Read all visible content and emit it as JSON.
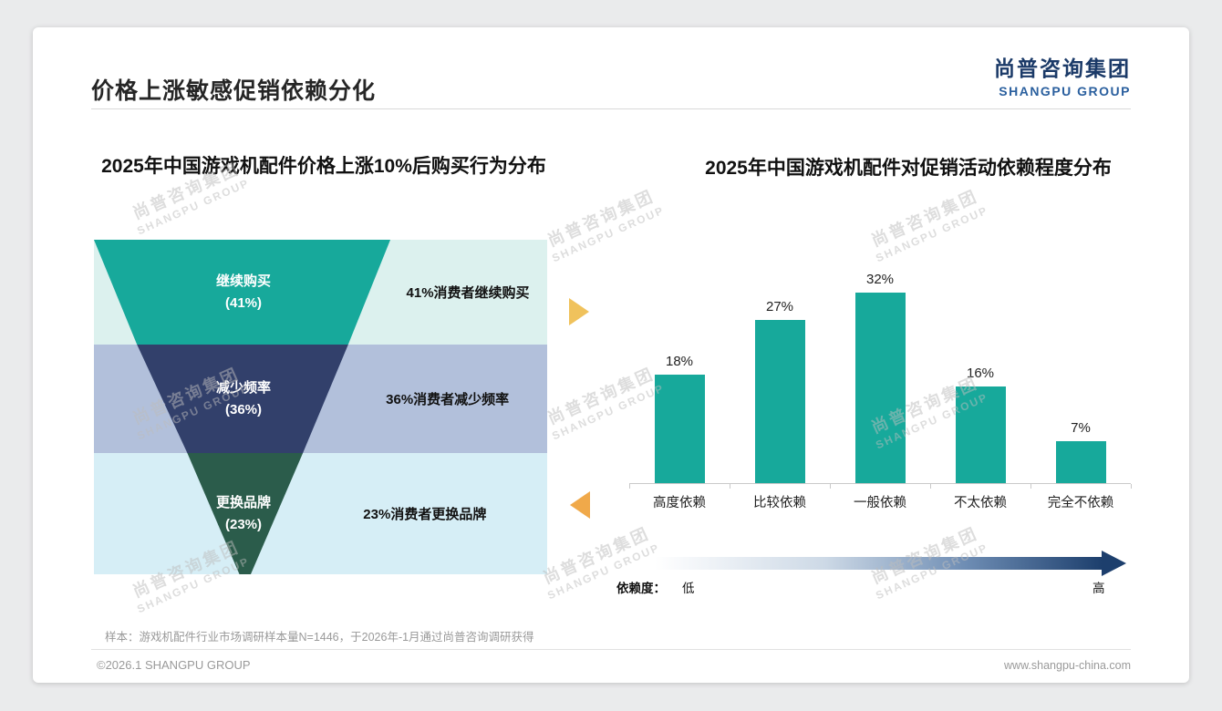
{
  "page": {
    "title": "价格上涨敏感促销依赖分化",
    "logo_cn": "尚普咨询集团",
    "logo_en": "SHANGPU GROUP",
    "watermark_cn": "尚普咨询集团",
    "watermark_en": "SHANGPU GROUP",
    "sample_note": "样本：游戏机配件行业市场调研样本量N=1446，于2026年-1月通过尚普咨询调研获得",
    "footer_left": "©2026.1 SHANGPU GROUP",
    "footer_right": "www.shangpu-china.com"
  },
  "decor": {
    "brand_navy": "#1b3a68",
    "brand_blue": "#2a5f9e",
    "teal": "#17a99b",
    "funnel_arrow_right": "#f0c25c",
    "funnel_arrow_left": "#f0a94a",
    "gradient_start": "#ffffff",
    "gradient_end": "#1d3f6d"
  },
  "chart_data": [
    {
      "type": "funnel",
      "title": "2025年中国游戏机配件价格上涨10%后购买行为分布",
      "unit": "%",
      "segments": [
        {
          "label": "继续购买",
          "value": 41,
          "desc": "41%消费者继续购买",
          "color": "#17a99b",
          "bg": "#dcf1ee"
        },
        {
          "label": "减少频率",
          "value": 36,
          "desc": "36%消费者减少频率",
          "color": "#32406b",
          "bg": "#b2c0db"
        },
        {
          "label": "更换品牌",
          "value": 23,
          "desc": "23%消费者更换品牌",
          "color": "#2b5c4b",
          "bg": "#d6eef6"
        }
      ]
    },
    {
      "type": "bar",
      "title": "2025年中国游戏机配件对促销活动依赖程度分布",
      "categories": [
        "高度依赖",
        "比较依赖",
        "一般依赖",
        "不太依赖",
        "完全不依赖"
      ],
      "values": [
        18,
        27,
        32,
        16,
        7
      ],
      "unit": "%",
      "bar_color": "#17a99b",
      "ylim": [
        0,
        35
      ],
      "grid": false,
      "legend": null,
      "axis_label": {
        "name": "依赖度：",
        "low": "低",
        "high": "高"
      }
    }
  ]
}
